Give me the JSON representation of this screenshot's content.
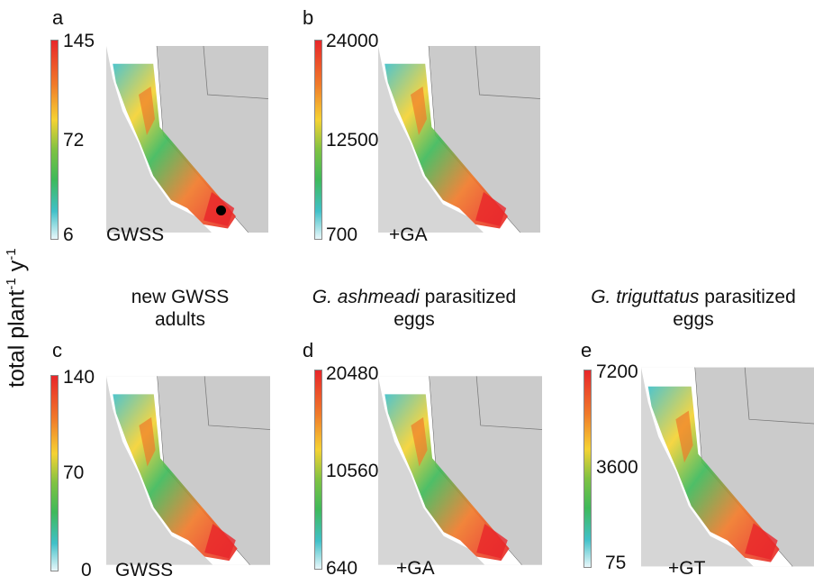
{
  "axis_label": {
    "main": "total plant",
    "sup1": "-1",
    "mid": " y",
    "sup2": "-1"
  },
  "titles": {
    "col1": {
      "line1": "new GWSS",
      "line2": "adults"
    },
    "col2": {
      "italic": "G. ashmeadi",
      "rest": " parasitized",
      "line2": "eggs"
    },
    "col3": {
      "italic": "G. triguttatus",
      "rest": " parasitized",
      "line2": "eggs"
    }
  },
  "panels": [
    {
      "letter": "a",
      "max": "145",
      "mid": "72",
      "min": "6",
      "tag": "GWSS"
    },
    {
      "letter": "b",
      "max": "24000",
      "mid": "12500",
      "min": "700",
      "tag": "+GA"
    },
    {
      "letter": "c",
      "max": "140",
      "mid": "70",
      "min": "0",
      "tag": "GWSS"
    },
    {
      "letter": "d",
      "max": "20480",
      "mid": "10560",
      "min": "640",
      "tag": "+GA"
    },
    {
      "letter": "e",
      "max": "7200",
      "mid": "3600",
      "min": "75",
      "tag": "+GT"
    }
  ],
  "colors": {
    "high": "#e8262a",
    "mid": "#f5d233",
    "low_mid": "#3fb95a",
    "low": "#40c0c8",
    "terrain": "#d4d4d4"
  }
}
